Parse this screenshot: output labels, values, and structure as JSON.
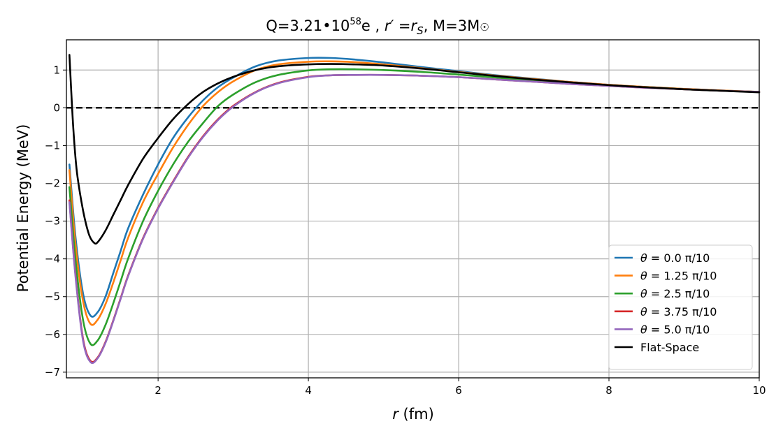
{
  "chart_data": {
    "type": "line",
    "title": "Q=3.21•10⁵⁸e , r′ =r_S,  M=3M☉",
    "title_parts": {
      "lead": "Q=3.21•10",
      "exponent": "58",
      "mid": "e , ",
      "r_prime": "r",
      "prime_mark": "′",
      "eq": " =",
      "rs": "r",
      "rs_sub": "S",
      "mass": ",  M=3M",
      "sun": "☉"
    },
    "xlabel": "r (fm)",
    "xlabel_parts": {
      "var": "r",
      "unit": " (fm)"
    },
    "ylabel": "Potential Energy (MeV)",
    "xlim": [
      0.78,
      10
    ],
    "ylim": [
      -7.15,
      1.8
    ],
    "xticks": [
      2,
      4,
      6,
      8,
      10
    ],
    "yticks": [
      -7,
      -6,
      -5,
      -4,
      -3,
      -2,
      -1,
      0,
      1
    ],
    "ytick_labels": [
      "−7",
      "−6",
      "−5",
      "−4",
      "−3",
      "−2",
      "−1",
      "0",
      "1"
    ],
    "grid": true,
    "legend_position": "lower-right",
    "reference_line": {
      "y": 0,
      "style": "dashed",
      "color": "#000000"
    },
    "series": [
      {
        "name": "θ =  0.0 π/10",
        "legend_symbol": "θ",
        "legend_text": " =  0.0 π/10",
        "color": "#1f77b4",
        "x": [
          0.82,
          0.9,
          1.0,
          1.1,
          1.2,
          1.3,
          1.4,
          1.5,
          1.6,
          1.8,
          2.0,
          2.2,
          2.4,
          2.6,
          2.8,
          3.0,
          3.3,
          3.6,
          4.0,
          4.3,
          4.6,
          5.0,
          5.5,
          6.0,
          6.5,
          7.0,
          7.5,
          8.0,
          8.5,
          9.0,
          9.5,
          10.0
        ],
        "y": [
          -1.5,
          -3.4,
          -4.9,
          -5.5,
          -5.4,
          -5.0,
          -4.4,
          -3.8,
          -3.2,
          -2.3,
          -1.5,
          -0.8,
          -0.25,
          0.2,
          0.55,
          0.8,
          1.1,
          1.25,
          1.32,
          1.32,
          1.28,
          1.2,
          1.08,
          0.97,
          0.86,
          0.77,
          0.68,
          0.61,
          0.55,
          0.5,
          0.46,
          0.42
        ]
      },
      {
        "name": "θ =  1.25 π/10",
        "legend_symbol": "θ",
        "legend_text": " =  1.25 π/10",
        "color": "#ff7f0e",
        "x": [
          0.82,
          0.9,
          1.0,
          1.1,
          1.2,
          1.3,
          1.4,
          1.5,
          1.6,
          1.8,
          2.0,
          2.2,
          2.4,
          2.6,
          2.8,
          3.0,
          3.3,
          3.6,
          4.0,
          4.3,
          4.6,
          5.0,
          5.5,
          6.0,
          6.5,
          7.0,
          7.5,
          8.0,
          8.5,
          9.0,
          9.5,
          10.0
        ],
        "y": [
          -1.65,
          -3.6,
          -5.1,
          -5.72,
          -5.6,
          -5.2,
          -4.65,
          -4.05,
          -3.45,
          -2.5,
          -1.75,
          -1.05,
          -0.45,
          0.05,
          0.42,
          0.7,
          1.0,
          1.15,
          1.22,
          1.23,
          1.21,
          1.15,
          1.05,
          0.95,
          0.85,
          0.76,
          0.68,
          0.61,
          0.55,
          0.5,
          0.46,
          0.42
        ]
      },
      {
        "name": "θ =  2.5 π/10",
        "legend_symbol": "θ",
        "legend_text": " =  2.5 π/10",
        "color": "#2ca02c",
        "x": [
          0.82,
          0.9,
          1.0,
          1.1,
          1.2,
          1.3,
          1.4,
          1.5,
          1.6,
          1.8,
          2.0,
          2.2,
          2.4,
          2.6,
          2.8,
          3.0,
          3.3,
          3.6,
          4.0,
          4.3,
          4.6,
          5.0,
          5.5,
          6.0,
          6.5,
          7.0,
          7.5,
          8.0,
          8.5,
          9.0,
          9.5,
          10.0
        ],
        "y": [
          -2.1,
          -4.0,
          -5.6,
          -6.25,
          -6.15,
          -5.75,
          -5.2,
          -4.6,
          -4.0,
          -3.0,
          -2.2,
          -1.5,
          -0.9,
          -0.4,
          0.05,
          0.35,
          0.68,
          0.87,
          0.99,
          1.02,
          1.02,
          1.0,
          0.95,
          0.88,
          0.8,
          0.72,
          0.65,
          0.59,
          0.54,
          0.49,
          0.45,
          0.42
        ]
      },
      {
        "name": "θ =  3.75 π/10",
        "legend_symbol": "θ",
        "legend_text": " =  3.75 π/10",
        "color": "#d62728",
        "x": [
          0.82,
          0.9,
          1.0,
          1.1,
          1.2,
          1.3,
          1.4,
          1.5,
          1.6,
          1.8,
          2.0,
          2.2,
          2.4,
          2.6,
          2.8,
          3.0,
          3.3,
          3.6,
          4.0,
          4.3,
          4.6,
          5.0,
          5.5,
          6.0,
          6.5,
          7.0,
          7.5,
          8.0,
          8.5,
          9.0,
          9.5,
          10.0
        ],
        "y": [
          -2.45,
          -4.4,
          -6.1,
          -6.7,
          -6.6,
          -6.2,
          -5.65,
          -5.05,
          -4.45,
          -3.45,
          -2.65,
          -1.95,
          -1.3,
          -0.75,
          -0.3,
          0.05,
          0.42,
          0.66,
          0.82,
          0.86,
          0.87,
          0.87,
          0.85,
          0.81,
          0.75,
          0.69,
          0.63,
          0.58,
          0.53,
          0.49,
          0.45,
          0.42
        ]
      },
      {
        "name": "θ =  5.0 π/10",
        "legend_symbol": "θ",
        "legend_text": " =  5.0 π/10",
        "color": "#9467bd",
        "x": [
          0.82,
          0.9,
          1.0,
          1.1,
          1.2,
          1.3,
          1.4,
          1.5,
          1.6,
          1.8,
          2.0,
          2.2,
          2.4,
          2.6,
          2.8,
          3.0,
          3.3,
          3.6,
          4.0,
          4.3,
          4.6,
          5.0,
          5.5,
          6.0,
          6.5,
          7.0,
          7.5,
          8.0,
          8.5,
          9.0,
          9.5,
          10.0
        ],
        "y": [
          -2.5,
          -4.45,
          -6.15,
          -6.73,
          -6.62,
          -6.22,
          -5.67,
          -5.07,
          -4.47,
          -3.47,
          -2.67,
          -1.97,
          -1.32,
          -0.77,
          -0.32,
          0.03,
          0.41,
          0.65,
          0.81,
          0.86,
          0.87,
          0.87,
          0.85,
          0.81,
          0.75,
          0.69,
          0.63,
          0.58,
          0.53,
          0.49,
          0.45,
          0.42
        ]
      },
      {
        "name": "Flat-Space",
        "color": "#000000",
        "x": [
          0.82,
          0.87,
          0.92,
          1.0,
          1.08,
          1.15,
          1.2,
          1.3,
          1.4,
          1.5,
          1.6,
          1.8,
          2.0,
          2.2,
          2.4,
          2.6,
          2.8,
          3.0,
          3.3,
          3.6,
          4.0,
          4.3,
          4.6,
          5.0,
          5.5,
          6.0,
          6.5,
          7.0,
          7.5,
          8.0,
          8.5,
          9.0,
          9.5,
          10.0
        ],
        "y": [
          1.4,
          -0.5,
          -1.7,
          -2.7,
          -3.35,
          -3.58,
          -3.55,
          -3.25,
          -2.85,
          -2.45,
          -2.05,
          -1.35,
          -0.8,
          -0.3,
          0.1,
          0.42,
          0.65,
          0.82,
          1.0,
          1.1,
          1.15,
          1.16,
          1.15,
          1.12,
          1.04,
          0.94,
          0.84,
          0.75,
          0.67,
          0.6,
          0.54,
          0.49,
          0.45,
          0.41
        ]
      }
    ]
  }
}
